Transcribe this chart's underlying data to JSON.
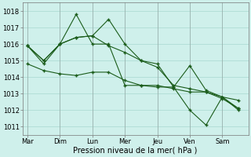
{
  "background_color": "#cff0eb",
  "grid_color": "#a8d8d0",
  "line_color": "#1a5c1a",
  "marker": "+",
  "markersize": 3,
  "linewidth": 0.8,
  "xlabel": "Pression niveau de la mer( hPa )",
  "xlabel_fontsize": 7,
  "tick_fontsize": 6,
  "ylim": [
    1010.5,
    1018.5
  ],
  "yticks": [
    1011,
    1012,
    1013,
    1014,
    1015,
    1016,
    1017,
    1018
  ],
  "x_labels": [
    "Mar",
    "Dim",
    "Lun",
    "Mer",
    "Jeu",
    "Ven",
    "Sam"
  ],
  "x_tick_pos": [
    0,
    1,
    2,
    3,
    4,
    5,
    6
  ],
  "xlim": [
    -0.15,
    6.8
  ],
  "s1_x": [
    0.0,
    0.5,
    1.0,
    1.5,
    2.0,
    2.5,
    3.0,
    3.5,
    4.0,
    4.5,
    5.0,
    5.5,
    6.0,
    6.5
  ],
  "s1_y": [
    1015.9,
    1014.8,
    1016.0,
    1017.8,
    1016.0,
    1016.0,
    1013.5,
    1013.5,
    1013.4,
    1013.4,
    1012.0,
    1011.1,
    1012.8,
    1012.0
  ],
  "s2_x": [
    0.0,
    0.5,
    1.0,
    1.5,
    2.0,
    2.5,
    3.0,
    3.5,
    4.0,
    4.5,
    5.0,
    5.5,
    6.0,
    6.5
  ],
  "s2_y": [
    1014.8,
    1014.4,
    1014.2,
    1014.1,
    1014.3,
    1014.3,
    1013.8,
    1013.5,
    1013.5,
    1013.3,
    1013.1,
    1013.1,
    1012.7,
    1012.1
  ],
  "s3_x": [
    0.0,
    0.5,
    1.0,
    1.5,
    2.0,
    2.5,
    3.0,
    3.5,
    4.0,
    4.5,
    5.0,
    5.5,
    6.0,
    6.5
  ],
  "s3_y": [
    1015.9,
    1015.0,
    1016.0,
    1016.4,
    1016.5,
    1015.9,
    1015.5,
    1015.0,
    1014.6,
    1013.5,
    1013.3,
    1013.1,
    1012.8,
    1012.6
  ],
  "s4_x": [
    0.0,
    0.5,
    1.0,
    1.5,
    2.0,
    2.5,
    3.0,
    3.5,
    4.0,
    4.5,
    5.0,
    5.5,
    6.0,
    6.5
  ],
  "s4_y": [
    1015.9,
    1015.0,
    1016.0,
    1016.4,
    1016.5,
    1017.5,
    1016.0,
    1015.0,
    1014.8,
    1013.4,
    1014.7,
    1013.2,
    1012.8,
    1012.1
  ],
  "vline_color": "#888888",
  "vline_positions": [
    0,
    1,
    2,
    3,
    4,
    5,
    6
  ]
}
